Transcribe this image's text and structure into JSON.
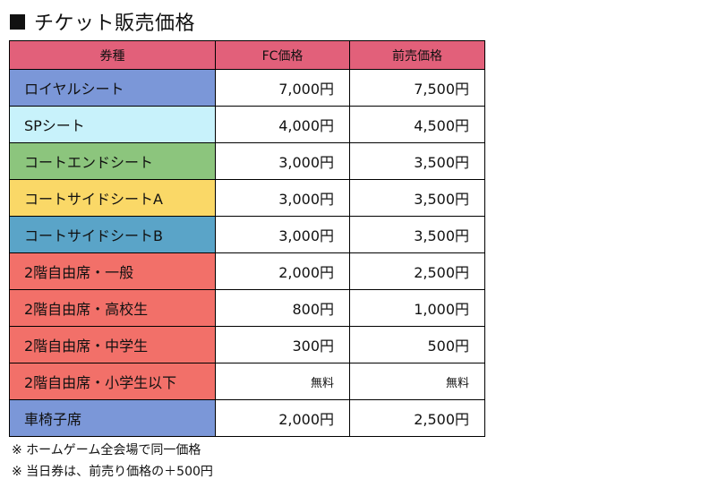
{
  "title": {
    "text": "チケット販売価格"
  },
  "colors": {
    "header_bg": "#e2607a",
    "royal": "#7b97d8",
    "sp": "#c8f2fb",
    "court_end": "#8cc57d",
    "court_side_a": "#fad867",
    "court_side_b": "#5aa4c8",
    "second_floor": "#f27069",
    "wheelchair": "#7b97d8"
  },
  "table": {
    "headers": [
      "券種",
      "FC価格",
      "前売価格"
    ],
    "rows": [
      {
        "name": "ロイヤルシート",
        "fc": "7,000円",
        "advance": "7,500円",
        "color": "#7b97d8"
      },
      {
        "name": "SPシート",
        "fc": "4,000円",
        "advance": "4,500円",
        "color": "#c8f2fb"
      },
      {
        "name": "コートエンドシート",
        "fc": "3,000円",
        "advance": "3,500円",
        "color": "#8cc57d"
      },
      {
        "name": "コートサイドシートA",
        "fc": "3,000円",
        "advance": "3,500円",
        "color": "#fad867"
      },
      {
        "name": "コートサイドシートB",
        "fc": "3,000円",
        "advance": "3,500円",
        "color": "#5aa4c8"
      },
      {
        "name": "2階自由席・一般",
        "fc": "2,000円",
        "advance": "2,500円",
        "color": "#f27069"
      },
      {
        "name": "2階自由席・高校生",
        "fc": "800円",
        "advance": "1,000円",
        "color": "#f27069"
      },
      {
        "name": "2階自由席・中学生",
        "fc": "300円",
        "advance": "500円",
        "color": "#f27069"
      },
      {
        "name": "2階自由席・小学生以下",
        "fc": "無料",
        "advance": "無料",
        "color": "#f27069"
      },
      {
        "name": "車椅子席",
        "fc": "2,000円",
        "advance": "2,500円",
        "color": "#7b97d8"
      }
    ]
  },
  "notes": [
    "※ ホームゲーム全会場で同一価格",
    "※ 当日券は、前売り価格の＋500円"
  ]
}
